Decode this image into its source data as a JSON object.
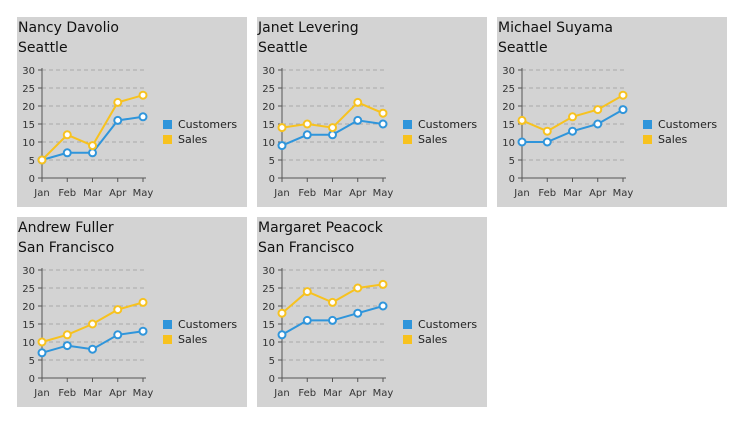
{
  "colors": {
    "customers": "#2f95db",
    "sales": "#f7c21f",
    "axis": "#555555",
    "grid": "#aaaaaa",
    "panel": "#d3d3d3"
  },
  "legend": {
    "customers_label": "Customers",
    "sales_label": "Sales"
  },
  "chart_data": [
    {
      "type": "line",
      "title": "Nancy Davolio",
      "subtitle": "Seattle",
      "categories": [
        "Jan",
        "Feb",
        "Mar",
        "Apr",
        "May"
      ],
      "ylim": [
        0,
        30
      ],
      "yticks": [
        0,
        5,
        10,
        15,
        20,
        25,
        30
      ],
      "grid": true,
      "legend": "right",
      "series": [
        {
          "name": "Customers",
          "values": [
            5,
            7,
            7,
            16,
            17
          ]
        },
        {
          "name": "Sales",
          "values": [
            5,
            12,
            9,
            21,
            23
          ]
        }
      ]
    },
    {
      "type": "line",
      "title": "Janet Levering",
      "subtitle": "Seattle",
      "categories": [
        "Jan",
        "Feb",
        "Mar",
        "Apr",
        "May"
      ],
      "ylim": [
        0,
        30
      ],
      "yticks": [
        0,
        5,
        10,
        15,
        20,
        25,
        30
      ],
      "grid": true,
      "legend": "right",
      "series": [
        {
          "name": "Customers",
          "values": [
            9,
            12,
            12,
            16,
            15
          ]
        },
        {
          "name": "Sales",
          "values": [
            14,
            15,
            14,
            21,
            18
          ]
        }
      ]
    },
    {
      "type": "line",
      "title": "Michael Suyama",
      "subtitle": "Seattle",
      "categories": [
        "Jan",
        "Feb",
        "Mar",
        "Apr",
        "May"
      ],
      "ylim": [
        0,
        30
      ],
      "yticks": [
        0,
        5,
        10,
        15,
        20,
        25,
        30
      ],
      "grid": true,
      "legend": "right",
      "series": [
        {
          "name": "Customers",
          "values": [
            10,
            10,
            13,
            15,
            19
          ]
        },
        {
          "name": "Sales",
          "values": [
            16,
            13,
            17,
            19,
            23
          ]
        }
      ]
    },
    {
      "type": "line",
      "title": "Andrew Fuller",
      "subtitle": "San Francisco",
      "categories": [
        "Jan",
        "Feb",
        "Mar",
        "Apr",
        "May"
      ],
      "ylim": [
        0,
        30
      ],
      "yticks": [
        0,
        5,
        10,
        15,
        20,
        25,
        30
      ],
      "grid": true,
      "legend": "right",
      "series": [
        {
          "name": "Customers",
          "values": [
            7,
            9,
            8,
            12,
            13
          ]
        },
        {
          "name": "Sales",
          "values": [
            10,
            12,
            15,
            19,
            21
          ]
        }
      ]
    },
    {
      "type": "line",
      "title": "Margaret Peacock",
      "subtitle": "San Francisco",
      "categories": [
        "Jan",
        "Feb",
        "Mar",
        "Apr",
        "May"
      ],
      "ylim": [
        0,
        30
      ],
      "yticks": [
        0,
        5,
        10,
        15,
        20,
        25,
        30
      ],
      "grid": true,
      "legend": "right",
      "series": [
        {
          "name": "Customers",
          "values": [
            12,
            16,
            16,
            18,
            20
          ]
        },
        {
          "name": "Sales",
          "values": [
            18,
            24,
            21,
            25,
            26
          ]
        }
      ]
    }
  ]
}
